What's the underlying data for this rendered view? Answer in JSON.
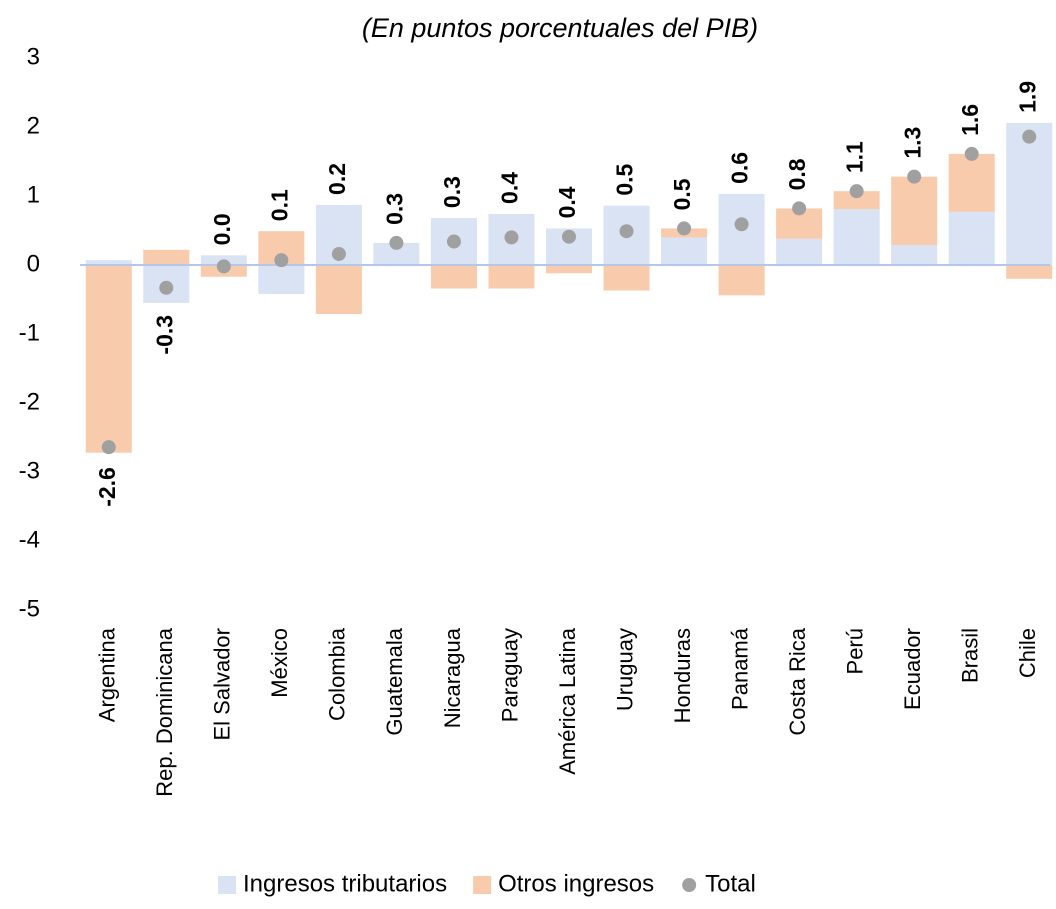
{
  "chart_data": {
    "type": "bar",
    "stacked": true,
    "subtitle": "(En puntos porcentuales del PIB)",
    "categories": [
      "Argentina",
      "Rep. Dominicana",
      "El Salvador",
      "México",
      "Colombia",
      "Guatemala",
      "Nicaragua",
      "Paraguay",
      "América Latina",
      "Uruguay",
      "Honduras",
      "Panamá",
      "Costa Rica",
      "Perú",
      "Ecuador",
      "Brasil",
      "Chile"
    ],
    "series": [
      {
        "name": "Ingresos tributarios",
        "color": "#dae3f3",
        "values": [
          0.07,
          -0.55,
          0.14,
          -0.42,
          0.87,
          0.32,
          0.68,
          0.74,
          0.53,
          0.86,
          0.4,
          1.03,
          0.38,
          0.81,
          0.29,
          0.77,
          2.06
        ]
      },
      {
        "name": "Otros ingresos",
        "color": "#f8cbad",
        "values": [
          -2.72,
          0.22,
          -0.17,
          0.49,
          -0.71,
          0,
          -0.34,
          -0.34,
          -0.12,
          -0.37,
          0.13,
          -0.44,
          0.44,
          0.26,
          0.99,
          0.84,
          -0.2
        ]
      },
      {
        "name": "Total",
        "color": "#a0a0a0",
        "mark": "dot",
        "values": [
          -2.64,
          -0.33,
          -0.02,
          0.07,
          0.16,
          0.32,
          0.34,
          0.4,
          0.41,
          0.49,
          0.53,
          0.59,
          0.82,
          1.07,
          1.28,
          1.61,
          1.86
        ],
        "value_labels": [
          "-2.6",
          "-0.3",
          "0.0",
          "0.1",
          "0.2",
          "0.3",
          "0.3",
          "0.4",
          "0.4",
          "0.5",
          "0.5",
          "0.6",
          "0.8",
          "1.1",
          "1.3",
          "1.6",
          "1.9"
        ]
      }
    ],
    "ylim": [
      -5,
      3
    ],
    "yticks": [
      -5,
      -4,
      -3,
      -2,
      -1,
      0,
      1,
      2,
      3
    ],
    "grid": false,
    "legend": "bottom"
  }
}
